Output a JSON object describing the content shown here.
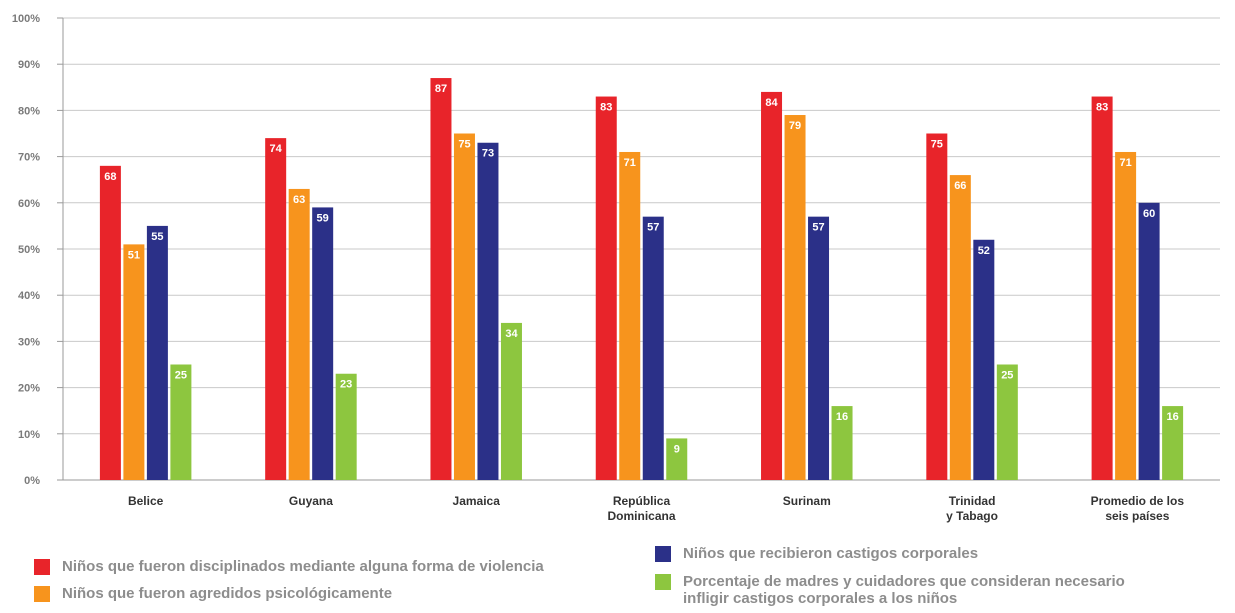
{
  "chart_data": {
    "type": "bar",
    "categories": [
      "Belice",
      "Guyana",
      "Jamaica",
      "República Dominicana",
      "Surinam",
      "Trinidad y Tabago",
      "Promedio de los seis países"
    ],
    "category_label_lines": [
      [
        "Belice"
      ],
      [
        "Guyana"
      ],
      [
        "Jamaica"
      ],
      [
        "República",
        "Dominicana"
      ],
      [
        "Surinam"
      ],
      [
        "Trinidad",
        "y Tabago"
      ],
      [
        "Promedio de los",
        "seis países"
      ]
    ],
    "series": [
      {
        "name": "Niños que fueron disciplinados mediante alguna forma de violencia",
        "color": "#e8242a",
        "values": [
          68,
          74,
          87,
          83,
          84,
          75,
          83
        ]
      },
      {
        "name": "Niños que fueron agredidos psicológicamente",
        "color": "#f7941d",
        "values": [
          51,
          63,
          75,
          71,
          79,
          66,
          71
        ]
      },
      {
        "name": "Niños que recibieron castigos corporales",
        "color": "#2b3088",
        "values": [
          55,
          59,
          73,
          57,
          57,
          52,
          60
        ]
      },
      {
        "name": "Porcentaje de madres y cuidadores que consideran necesario infligir castigos corporales a los niños",
        "color": "#8dc63f",
        "values": [
          25,
          23,
          34,
          9,
          16,
          25,
          16
        ]
      }
    ],
    "ylim": [
      0,
      100
    ],
    "yticks": [
      "0%",
      "10%",
      "20%",
      "30%",
      "40%",
      "50%",
      "60%",
      "70%",
      "80%",
      "90%",
      "100%"
    ],
    "grid": true,
    "legend_position": "bottom",
    "data_labels": true
  },
  "legend": {
    "item1": "Niños que fueron disciplinados mediante alguna forma de violencia",
    "item2": "Niños que fueron agredidos psicológicamente",
    "item3": "Niños que recibieron castigos corporales",
    "item4_line1": "Porcentaje de madres y cuidadores que consideran necesario",
    "item4_line2": "infligir castigos corporales a los niños"
  }
}
